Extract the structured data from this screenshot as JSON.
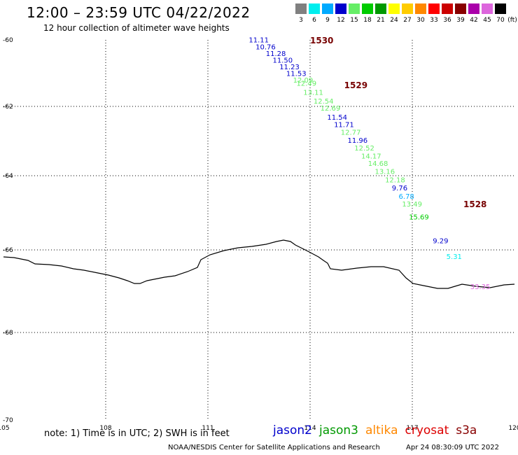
{
  "header": {
    "title": "12:00 – 23:59 UTC 04/22/2022",
    "subtitle": "12 hour collection of altimeter wave heights"
  },
  "legend": {
    "unit": "(ft)",
    "bins": [
      {
        "label": "3",
        "color": "#808080"
      },
      {
        "label": "6",
        "color": "#00eeee"
      },
      {
        "label": "9",
        "color": "#00aaff"
      },
      {
        "label": "12",
        "color": "#0000cc"
      },
      {
        "label": "15",
        "color": "#66ee66"
      },
      {
        "label": "18",
        "color": "#00cc00"
      },
      {
        "label": "21",
        "color": "#009900"
      },
      {
        "label": "24",
        "color": "#ffff00"
      },
      {
        "label": "27",
        "color": "#ffcc00"
      },
      {
        "label": "30",
        "color": "#ff8800"
      },
      {
        "label": "33",
        "color": "#ff0000"
      },
      {
        "label": "36",
        "color": "#cc0000"
      },
      {
        "label": "39",
        "color": "#880000"
      },
      {
        "label": "42",
        "color": "#aa00aa"
      },
      {
        "label": "45",
        "color": "#dd66dd"
      },
      {
        "label": "70",
        "color": "#000000"
      }
    ]
  },
  "map": {
    "lon_ticks": [
      "105",
      "108",
      "111",
      "114",
      "117",
      "120"
    ],
    "lat_ticks": [
      "-60",
      "-62",
      "-64",
      "-66",
      "-68",
      "-70"
    ],
    "lon_range": [
      105,
      120
    ],
    "lat_range": [
      -60,
      -70
    ],
    "pass_times": [
      {
        "label": "1530",
        "lon": 114.0,
        "lat": -60.1
      },
      {
        "label": "1529",
        "lon": 115.0,
        "lat": -61.45
      },
      {
        "label": "1528",
        "lon": 118.5,
        "lat": -64.85
      }
    ],
    "observations": [
      {
        "value": "11.11",
        "lon": 112.2,
        "lat": -60.07,
        "color": "#0000cc"
      },
      {
        "value": "10.76",
        "lon": 112.4,
        "lat": -60.28,
        "color": "#0000cc"
      },
      {
        "value": "11.28",
        "lon": 112.7,
        "lat": -60.48,
        "color": "#0000cc"
      },
      {
        "value": "11.50",
        "lon": 112.9,
        "lat": -60.68,
        "color": "#0000cc"
      },
      {
        "value": "11.23",
        "lon": 113.1,
        "lat": -60.88,
        "color": "#0000cc"
      },
      {
        "value": "11.53",
        "lon": 113.3,
        "lat": -61.08,
        "color": "#0000cc"
      },
      {
        "value": "12.09",
        "lon": 113.5,
        "lat": -61.28,
        "color": "#66ee66"
      },
      {
        "value": "12.49",
        "lon": 113.6,
        "lat": -61.38,
        "color": "#66ee66"
      },
      {
        "value": "13.11",
        "lon": 113.8,
        "lat": -61.65,
        "color": "#66ee66"
      },
      {
        "value": "12.54",
        "lon": 114.1,
        "lat": -61.92,
        "color": "#66ee66"
      },
      {
        "value": "12.69",
        "lon": 114.3,
        "lat": -62.12,
        "color": "#66ee66"
      },
      {
        "value": "11.54",
        "lon": 114.5,
        "lat": -62.38,
        "color": "#0000cc"
      },
      {
        "value": "11.71",
        "lon": 114.7,
        "lat": -62.6,
        "color": "#0000cc"
      },
      {
        "value": "12.77",
        "lon": 114.9,
        "lat": -62.82,
        "color": "#66ee66"
      },
      {
        "value": "11.96",
        "lon": 115.1,
        "lat": -63.05,
        "color": "#0000cc"
      },
      {
        "value": "12.52",
        "lon": 115.3,
        "lat": -63.27,
        "color": "#66ee66"
      },
      {
        "value": "14.17",
        "lon": 115.5,
        "lat": -63.5,
        "color": "#66ee66"
      },
      {
        "value": "14.68",
        "lon": 115.7,
        "lat": -63.72,
        "color": "#66ee66"
      },
      {
        "value": "13.16",
        "lon": 115.9,
        "lat": -63.95,
        "color": "#66ee66"
      },
      {
        "value": "12.18",
        "lon": 116.2,
        "lat": -64.18,
        "color": "#66ee66"
      },
      {
        "value": "9.76",
        "lon": 116.4,
        "lat": -64.4,
        "color": "#0000cc"
      },
      {
        "value": "6.78",
        "lon": 116.6,
        "lat": -64.62,
        "color": "#00aaff"
      },
      {
        "value": "13.49",
        "lon": 116.7,
        "lat": -64.83,
        "color": "#66ee66"
      },
      {
        "value": "15.69",
        "lon": 116.9,
        "lat": -65.18,
        "color": "#00cc00"
      },
      {
        "value": "9.29",
        "lon": 117.6,
        "lat": -65.82,
        "color": "#0000cc"
      },
      {
        "value": "5.31",
        "lon": 118.0,
        "lat": -66.22,
        "color": "#00eeee"
      },
      {
        "value": "33.35",
        "lon": 118.7,
        "lat": -66.95,
        "color": "#dd66dd"
      }
    ]
  },
  "note": "note: 1) Time is in UTC; 2) SWH is in feet",
  "satellites": [
    {
      "name": "jason2",
      "color": "#0000cc"
    },
    {
      "name": "jason3",
      "color": "#009900"
    },
    {
      "name": "altika",
      "color": "#ff8800"
    },
    {
      "name": "cryosat",
      "color": "#dd0000"
    },
    {
      "name": "s3a",
      "color": "#880000"
    }
  ],
  "footer": {
    "credit": "NOAA/NESDIS Center for Satellite Applications and Research",
    "timestamp": "Apr 24 08:30:09 UTC 2022"
  }
}
